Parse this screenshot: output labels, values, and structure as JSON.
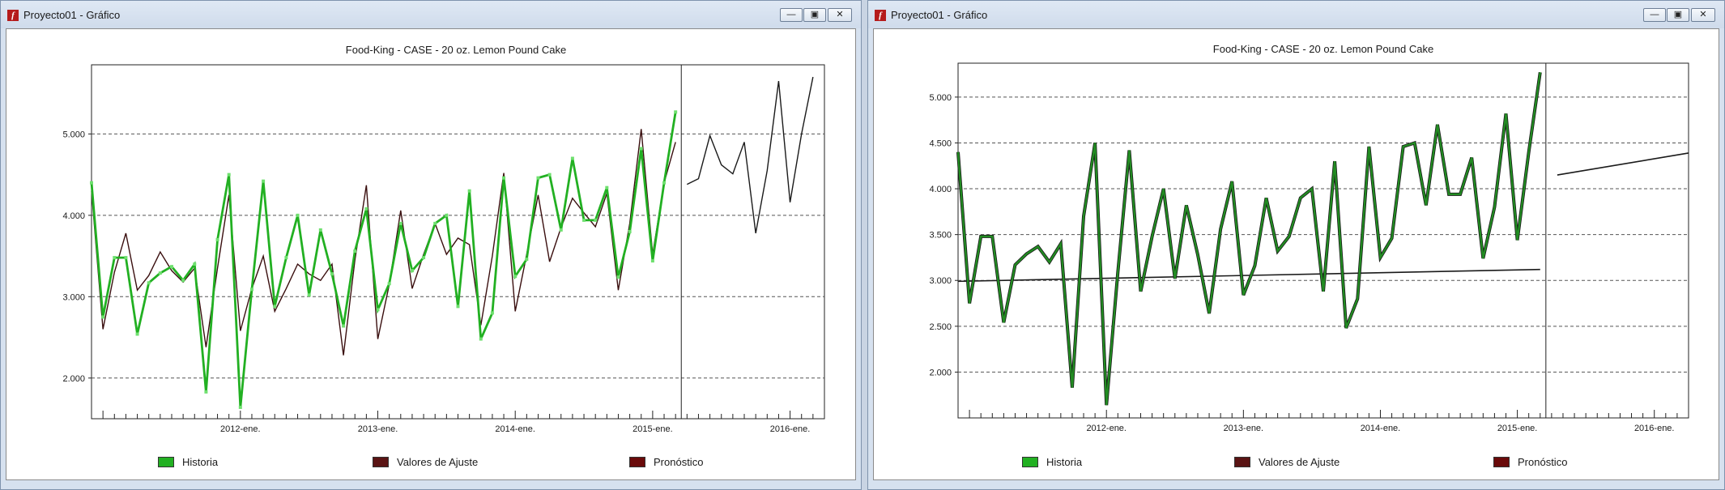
{
  "windows": [
    {
      "id": "left",
      "title": "Proyecto01 - Gráfico",
      "controls": {
        "minimize_icon": "minimize-icon",
        "maximize_icon": "maximize-icon",
        "close_icon": "close-icon"
      },
      "legend": [
        {
          "label": "Historia",
          "color": "#22b022"
        },
        {
          "label": "Valores de Ajuste",
          "color": "#5a1414"
        },
        {
          "label": "Pronóstico",
          "color": "#6a0a0a"
        }
      ]
    },
    {
      "id": "right",
      "title": "Proyecto01 - Gráfico",
      "controls": {
        "minimize_icon": "minimize-icon",
        "maximize_icon": "maximize-icon",
        "close_icon": "close-icon"
      },
      "legend": [
        {
          "label": "Historia",
          "color": "#22b022"
        },
        {
          "label": "Valores de Ajuste",
          "color": "#5a1414"
        },
        {
          "label": "Pronóstico",
          "color": "#6a0a0a"
        }
      ]
    }
  ],
  "chart_data": [
    {
      "type": "line",
      "title": "Food-King - CASE - 20 oz. Lemon Pound Cake",
      "xlabel": "",
      "ylabel": "",
      "ylim": [
        1500,
        5850
      ],
      "y_ticks": [
        {
          "value": 2000,
          "label": "2.000"
        },
        {
          "value": 3000,
          "label": "3.000"
        },
        {
          "value": 4000,
          "label": "4.000"
        },
        {
          "value": 5000,
          "label": "5.000"
        }
      ],
      "x_labels": [
        "2012-ene.",
        "2013-ene.",
        "2014-ene.",
        "2015-ene.",
        "2016-ene."
      ],
      "grid": "horizontal dashed",
      "legend_position": "bottom",
      "colors": {
        "history": "#22b022",
        "fitted": "#3a0f0f",
        "forecast": "#1a1a1a"
      },
      "series": [
        {
          "name": "Historia",
          "values": [
            4400,
            2750,
            3480,
            3480,
            2540,
            3170,
            3290,
            3370,
            3200,
            3400,
            1830,
            3700,
            4500,
            1640,
            3090,
            4420,
            2880,
            3480,
            4000,
            3020,
            3820,
            3280,
            2640,
            3560,
            4080,
            2840,
            3160,
            3900,
            3320,
            3480,
            3900,
            4000,
            2880,
            4300,
            2480,
            2800,
            4460,
            3250,
            3460,
            4460,
            4500,
            3820,
            4700,
            3940,
            3940,
            4340,
            3240,
            3800,
            4820,
            3440,
            4400,
            5270
          ]
        },
        {
          "name": "Valores de Ajuste",
          "values": [
            4300,
            2600,
            3300,
            3780,
            3080,
            3260,
            3550,
            3320,
            3180,
            3350,
            2380,
            3350,
            4250,
            2580,
            3100,
            3500,
            2820,
            3100,
            3400,
            3280,
            3200,
            3400,
            2280,
            3450,
            4370,
            2480,
            3150,
            4060,
            3100,
            3520,
            3900,
            3520,
            3720,
            3640,
            2650,
            3500,
            4520,
            2820,
            3520,
            4250,
            3430,
            3850,
            4210,
            4030,
            3860,
            4270,
            3080,
            3900,
            5060,
            3520,
            4400,
            4900
          ]
        },
        {
          "name": "Pronóstico",
          "values": [
            4380,
            4450,
            4980,
            4620,
            4510,
            4900,
            3780,
            4550,
            5650,
            4160,
            5000,
            5700
          ]
        }
      ]
    },
    {
      "type": "line",
      "title": "Food-King - CASE - 20 oz. Lemon Pound Cake",
      "xlabel": "",
      "ylabel": "",
      "ylim": [
        1500,
        5370
      ],
      "y_ticks": [
        {
          "value": 2000,
          "label": "2.000"
        },
        {
          "value": 2500,
          "label": "2.500"
        },
        {
          "value": 3000,
          "label": "3.000"
        },
        {
          "value": 3500,
          "label": "3.500"
        },
        {
          "value": 4000,
          "label": "4.000"
        },
        {
          "value": 4500,
          "label": "4.500"
        },
        {
          "value": 5000,
          "label": "5.000"
        }
      ],
      "x_labels": [
        "2012-ene.",
        "2013-ene.",
        "2014-ene.",
        "2015-ene.",
        "2016-ene."
      ],
      "grid": "horizontal dashed",
      "legend_position": "bottom",
      "colors": {
        "history": "#228c22",
        "fitted": "#1a1a1a",
        "forecast": "#1a1a1a"
      },
      "series": [
        {
          "name": "Historia",
          "values": [
            4400,
            2750,
            3480,
            3480,
            2540,
            3170,
            3290,
            3370,
            3200,
            3400,
            1830,
            3700,
            4500,
            1640,
            3090,
            4420,
            2880,
            3480,
            4000,
            3020,
            3820,
            3280,
            2640,
            3560,
            4080,
            2840,
            3160,
            3900,
            3320,
            3480,
            3900,
            4000,
            2880,
            4300,
            2480,
            2800,
            4460,
            3250,
            3460,
            4460,
            4500,
            3820,
            4700,
            3940,
            3940,
            4340,
            3240,
            3800,
            4820,
            3440,
            4400,
            5270
          ]
        },
        {
          "name": "Valores de Ajuste",
          "values": [
            2990,
            3120
          ]
        },
        {
          "name": "Pronóstico",
          "values": [
            4150,
            4390
          ]
        }
      ]
    }
  ]
}
